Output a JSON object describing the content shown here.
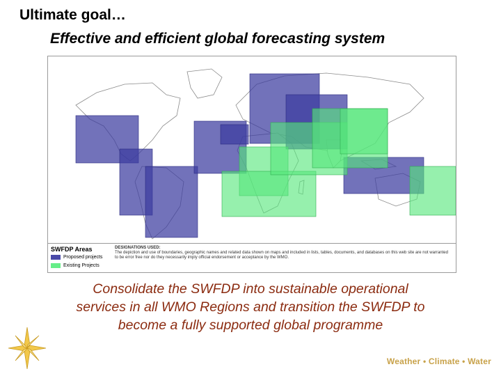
{
  "slide": {
    "title": "Ultimate goal…",
    "subtitle": "Effective and efficient global forecasting system",
    "caption_lines": [
      "Consolidate the SWFDP into sustainable operational",
      "services in all WMO Regions and transition the SWFDP to",
      "become a fully supported global programme"
    ],
    "footer": "Weather • Climate • Water"
  },
  "map": {
    "legend": {
      "title": "SWFDP Areas",
      "items": [
        {
          "label": "Proposed projects",
          "color": "#4a4aa8"
        },
        {
          "label": "Existing Projects",
          "color": "#66ee88"
        }
      ]
    },
    "designations": {
      "heading": "DESIGNATIONS USED:",
      "text": "The depiction and use of boundaries, geographic names and related data shown on maps and included in lists, tables, documents, and databases on this web site are not warranted to be error free nor do they necessarily imply official endorsement or acceptance by the WMO."
    }
  },
  "colors": {
    "caption": "#8b2b10",
    "footer": "#c8a24a",
    "proposed": "#3c3ca0",
    "existing": "#55e67a"
  }
}
